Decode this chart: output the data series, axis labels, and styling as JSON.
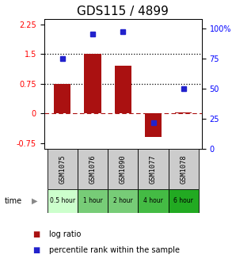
{
  "title": "GDS115 / 4899",
  "samples": [
    "GSM1075",
    "GSM1076",
    "GSM1090",
    "GSM1077",
    "GSM1078"
  ],
  "time_labels": [
    "0.5 hour",
    "1 hour",
    "2 hour",
    "4 hour",
    "6 hour"
  ],
  "time_colors": [
    "#ccffcc",
    "#77cc77",
    "#77cc77",
    "#44bb44",
    "#22aa22"
  ],
  "log_ratios": [
    0.75,
    1.5,
    1.2,
    -0.6,
    0.02
  ],
  "percentile_ranks": [
    75,
    95,
    97,
    22,
    50
  ],
  "bar_color": "#aa1111",
  "dot_color": "#2222cc",
  "ylim_left": [
    -0.9,
    2.4
  ],
  "ylim_right": [
    0,
    108
  ],
  "yticks_left": [
    -0.75,
    0,
    0.75,
    1.5,
    2.25
  ],
  "yticks_right": [
    0,
    25,
    50,
    75,
    100
  ],
  "hlines": [
    0.75,
    1.5
  ],
  "hline_zero": 0.0,
  "title_fontsize": 11,
  "tick_fontsize": 7,
  "legend_fontsize": 7,
  "bar_width": 0.55
}
